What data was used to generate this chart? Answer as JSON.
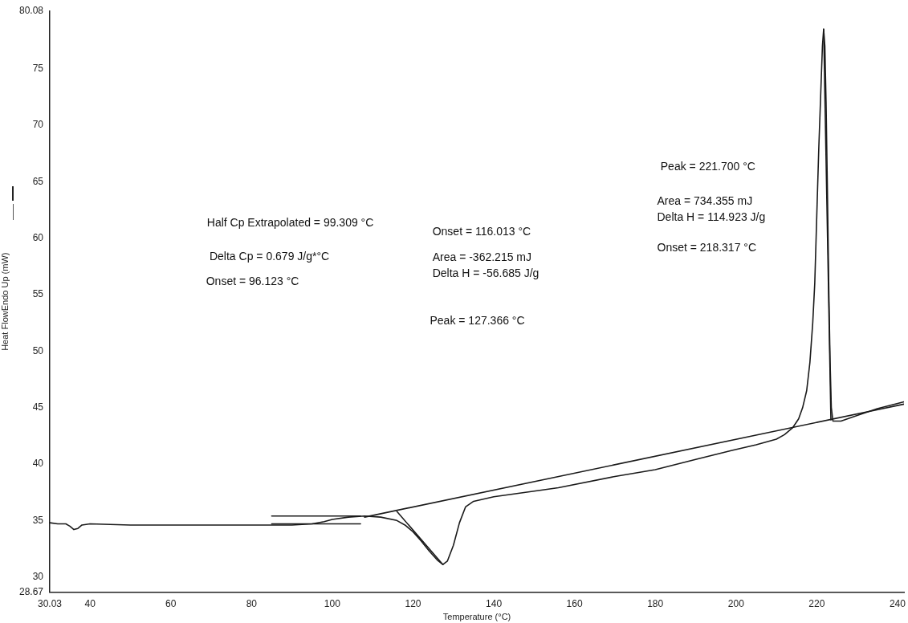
{
  "chart_data": {
    "type": "line",
    "xlabel": "Temperature (°C)",
    "ylabel": "Heat FlowEndo Up (mW)",
    "xlim": [
      30.03,
      241.6
    ],
    "ylim": [
      28.67,
      80.08
    ],
    "xticks": [
      30.03,
      40,
      60,
      80,
      100,
      120,
      140,
      160,
      180,
      200,
      220,
      240
    ],
    "yticks": [
      28.67,
      30,
      35,
      40,
      45,
      50,
      55,
      60,
      65,
      70,
      75,
      80.08
    ],
    "grid": false,
    "legend": false,
    "marker": "none",
    "line_style": "solid",
    "series": [
      {
        "color": "#1a1a1a",
        "x": [
          30.03,
          32,
          34,
          35,
          36,
          37,
          38,
          40,
          50,
          60,
          70,
          80,
          90,
          95,
          98,
          100,
          104,
          108,
          112,
          116,
          118,
          120,
          122,
          124,
          126,
          127.4,
          128.5,
          130,
          131.5,
          133,
          135,
          140,
          150,
          156,
          170,
          180,
          190,
          199,
          205,
          210,
          212,
          214,
          215.5,
          216.5,
          217.5,
          218.3,
          219,
          219.5,
          220,
          220.5,
          221,
          221.4,
          221.7,
          222,
          222.3,
          222.6,
          223,
          223.3,
          223.6,
          224,
          226,
          230,
          235,
          241.6
        ],
        "values": [
          34.8,
          34.7,
          34.7,
          34.5,
          34.2,
          34.3,
          34.6,
          34.7,
          34.6,
          34.6,
          34.6,
          34.6,
          34.6,
          34.7,
          34.9,
          35.1,
          35.3,
          35.4,
          35.3,
          35.0,
          34.6,
          34.0,
          33.2,
          32.3,
          31.5,
          31.1,
          31.4,
          32.8,
          34.8,
          36.2,
          36.7,
          37.1,
          37.6,
          37.9,
          38.9,
          39.5,
          40.4,
          41.2,
          41.7,
          42.2,
          42.6,
          43.2,
          44.0,
          45.0,
          46.5,
          49.0,
          52.5,
          56.0,
          62.0,
          68.0,
          73.0,
          77.0,
          78.5,
          77.0,
          72.0,
          65.0,
          55.0,
          49.0,
          45.0,
          43.8,
          43.8,
          44.3,
          44.9,
          45.5
        ]
      },
      {
        "color": "#1a1a1a",
        "x": [
          108,
          241.6
        ],
        "values": [
          35.3,
          45.3
        ]
      },
      {
        "color": "#1a1a1a",
        "x": [
          85,
          107
        ],
        "values": [
          35.4,
          35.4
        ]
      },
      {
        "color": "#1a1a1a",
        "x": [
          85,
          107
        ],
        "values": [
          34.7,
          34.7
        ]
      },
      {
        "color": "#1a1a1a",
        "x": [
          116,
          127.4
        ],
        "values": [
          35.8,
          31.1
        ]
      },
      {
        "color": "#1a1a1a",
        "x": [
          221.7,
          223.5
        ],
        "values": [
          78.5,
          43.9
        ]
      }
    ],
    "annotations": [
      "Half Cp Extrapolated = 99.309 °C",
      "Delta Cp = 0.679 J/g*°C",
      "Onset = 96.123 °C",
      "Onset = 116.013 °C",
      "Area = -362.215 mJ",
      "Delta H = -56.685 J/g",
      "Peak = 127.366 °C",
      "Peak = 221.700 °C",
      "Area = 734.355 mJ",
      "Delta H = 114.923 J/g",
      "Onset = 218.317 °C"
    ]
  }
}
